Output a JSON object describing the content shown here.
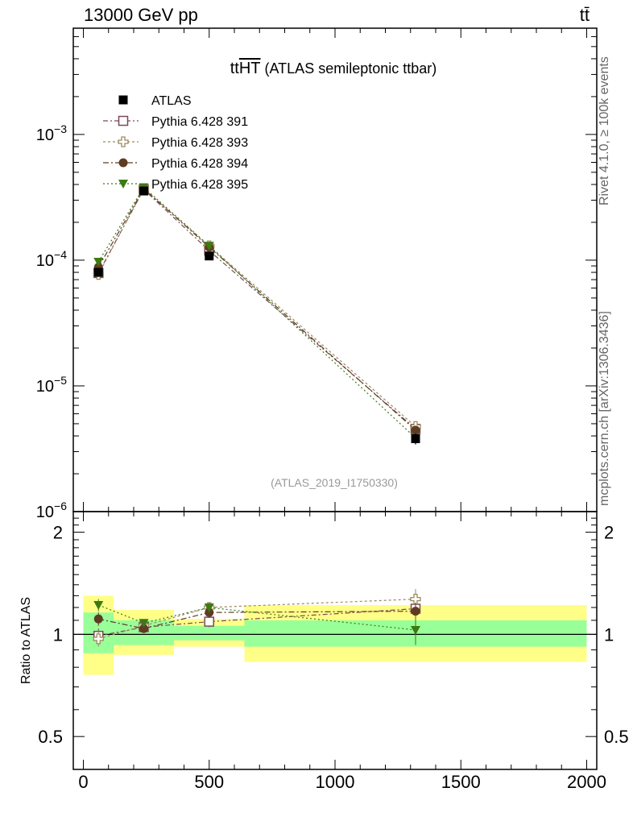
{
  "header": {
    "left": "13000 GeV pp",
    "right": "tt̄"
  },
  "side_text": {
    "rivet": "Rivet 4.1.0, ≥ 100k events",
    "mcplots": "mcplots.cern.ch [arXiv:1306.3436]"
  },
  "plot": {
    "title_prefix": "tt",
    "title_overline": "HT",
    "title_suffix": " (ATLAS semileptonic ttbar)",
    "watermark": "(ATLAS_2019_I1750330)",
    "ratio_ylabel": "Ratio to ATLAS"
  },
  "colors": {
    "ATLAS": "#000000",
    "391": "#7b4a5a",
    "393": "#9c8a5e",
    "394": "#5e3c22",
    "395": "#3d7a12",
    "band_inner": "#99ff99",
    "band_outer": "#ffff88"
  },
  "chart_data": {
    "type": "scatter",
    "main": {
      "yscale": "log",
      "ylim": [
        1e-06,
        0.007
      ],
      "xlim": [
        -40,
        2040
      ],
      "ytick_labels": [
        {
          "value": 1e-06,
          "base": "10",
          "exp": "−6"
        },
        {
          "value": 1e-05,
          "base": "10",
          "exp": "−5"
        },
        {
          "value": 0.0001,
          "base": "10",
          "exp": "−4"
        },
        {
          "value": 0.001,
          "base": "10",
          "exp": "−3"
        }
      ],
      "legend_position": "top-left",
      "series": [
        {
          "name": "ATLAS",
          "marker": "square-filled",
          "x": [
            60,
            240,
            500,
            1320
          ],
          "y": [
            8e-05,
            0.000355,
            0.000108,
            3.8e-06
          ],
          "yerr_rel": [
            0.08,
            0.05,
            0.05,
            0.1
          ]
        },
        {
          "name": "Pythia 6.428 391",
          "marker": "square-open",
          "x": [
            60,
            240,
            500,
            1320
          ],
          "y": [
            7.9e-05,
            0.000365,
            0.000119,
            4.55e-06
          ],
          "dash": "6,3,2,3"
        },
        {
          "name": "Pythia 6.428 393",
          "marker": "cross-open",
          "x": [
            60,
            240,
            500,
            1320
          ],
          "y": [
            7.7e-05,
            0.00037,
            0.00013,
            4.75e-06
          ],
          "dash": "3,3"
        },
        {
          "name": "Pythia 6.428 394",
          "marker": "circle-filled",
          "x": [
            60,
            240,
            500,
            1320
          ],
          "y": [
            8.8e-05,
            0.00037,
            0.000127,
            4.45e-06
          ],
          "dash": "7,3,2,3"
        },
        {
          "name": "Pythia 6.428 395",
          "marker": "triangle-down-filled",
          "x": [
            60,
            240,
            500,
            1320
          ],
          "y": [
            9.7e-05,
            0.00038,
            0.00013,
            3.85e-06
          ],
          "dash": "2,3"
        }
      ]
    },
    "ratio": {
      "ylabel": "Ratio to ATLAS",
      "ylim": [
        0.4,
        2.3
      ],
      "xlim": [
        -40,
        2040
      ],
      "yscale": "log",
      "yticks": [
        0.5,
        1,
        2
      ],
      "ytick_labels": [
        "0.5",
        "1",
        "2"
      ],
      "xticks": [
        0,
        500,
        1000,
        1500,
        2000
      ],
      "xtick_labels": [
        "0",
        "500",
        "1000",
        "1500",
        "2000"
      ],
      "bands": [
        {
          "x0": 0,
          "x1": 120,
          "inner": [
            0.88,
            1.16
          ],
          "outer": [
            0.76,
            1.3
          ]
        },
        {
          "x0": 120,
          "x1": 360,
          "inner": [
            0.93,
            1.1
          ],
          "outer": [
            0.87,
            1.18
          ]
        },
        {
          "x0": 360,
          "x1": 640,
          "inner": [
            0.96,
            1.06
          ],
          "outer": [
            0.92,
            1.11
          ]
        },
        {
          "x0": 640,
          "x1": 2000,
          "inner": [
            0.92,
            1.1
          ],
          "outer": [
            0.83,
            1.22
          ]
        }
      ],
      "series": [
        {
          "name": "Pythia 6.428 391",
          "x": [
            60,
            240,
            500,
            1320
          ],
          "y": [
            0.99,
            1.05,
            1.09,
            1.19
          ],
          "yerr": [
            0.05,
            0.02,
            0.04,
            0.07
          ]
        },
        {
          "name": "Pythia 6.428 393",
          "x": [
            60,
            240,
            500,
            1320
          ],
          "y": [
            0.97,
            1.06,
            1.2,
            1.27
          ],
          "yerr": [
            0.05,
            0.02,
            0.04,
            0.09
          ]
        },
        {
          "name": "Pythia 6.428 394",
          "x": [
            60,
            240,
            500,
            1320
          ],
          "y": [
            1.11,
            1.04,
            1.16,
            1.17
          ],
          "yerr": [
            0.05,
            0.02,
            0.04,
            0.07
          ]
        },
        {
          "name": "Pythia 6.428 395",
          "x": [
            60,
            240,
            500,
            1320
          ],
          "y": [
            1.22,
            1.08,
            1.2,
            1.03
          ],
          "yerr": [
            0.05,
            0.02,
            0.04,
            0.1
          ]
        }
      ]
    }
  }
}
